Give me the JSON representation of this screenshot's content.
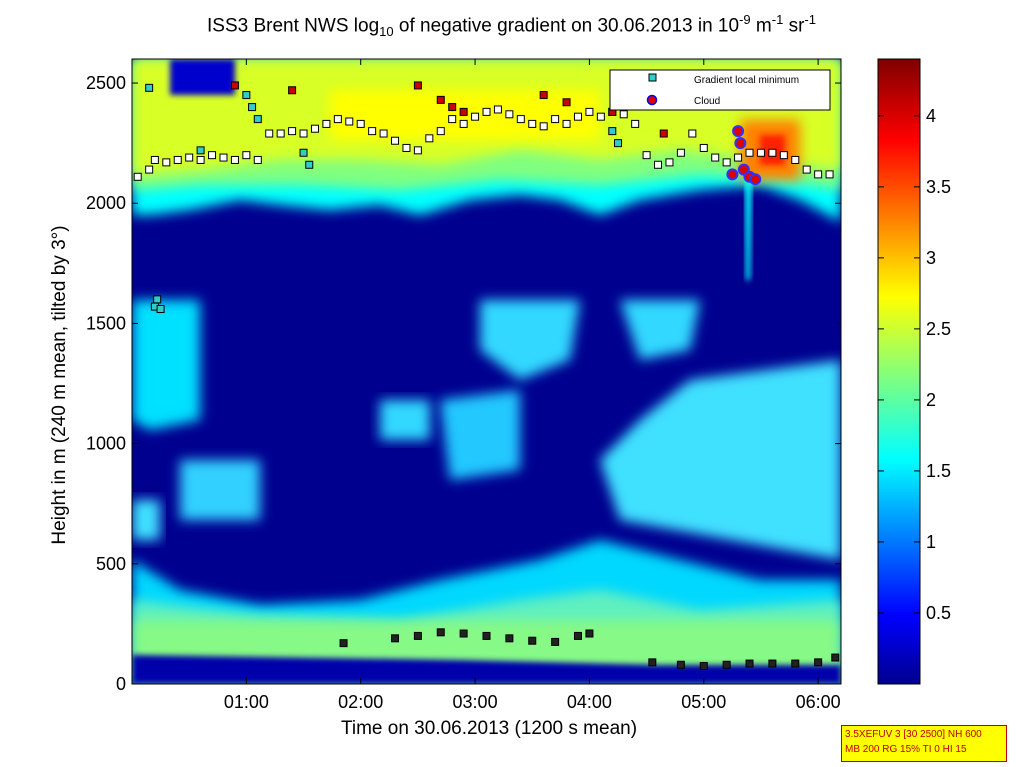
{
  "chart_data": {
    "type": "heatmap",
    "title_main": "ISS3 Brent NWS log",
    "title_sub": "10",
    "title_mid": " of negative gradient on 30.06.2013 in 10",
    "title_sup1": "-9",
    "title_unit1": " m",
    "title_sup2": "-1",
    "title_unit2": " sr",
    "title_sup3": "-1",
    "xlabel": "Time on 30.06.2013 (1200 s mean)",
    "ylabel": "Height in m (240 m mean, tilted by 3°)",
    "xlim": [
      0.0,
      6.2
    ],
    "ylim": [
      0,
      2600
    ],
    "x_ticks": [
      {
        "value": 1,
        "label": "01:00"
      },
      {
        "value": 2,
        "label": "02:00"
      },
      {
        "value": 3,
        "label": "03:00"
      },
      {
        "value": 4,
        "label": "04:00"
      },
      {
        "value": 5,
        "label": "05:00"
      },
      {
        "value": 6,
        "label": "06:00"
      }
    ],
    "y_ticks": [
      0,
      500,
      1000,
      1500,
      2000,
      2500
    ],
    "colorbar": {
      "min": 0,
      "max": 4.4,
      "ticks": [
        0.5,
        1,
        1.5,
        2,
        2.5,
        3,
        3.5,
        4
      ],
      "colormap": "jet"
    },
    "legend": {
      "position": "top-right",
      "entries": [
        {
          "label": "Gradient local minimum",
          "marker": "square",
          "color": "#33cccc"
        },
        {
          "label": "Cloud",
          "marker": "circle",
          "color": "#dd0000"
        }
      ]
    },
    "series": [
      {
        "kind": "boundary-markers",
        "marker": "square",
        "color": "#ffffff",
        "points": [
          [
            0.05,
            2110
          ],
          [
            0.15,
            2140
          ],
          [
            0.2,
            2180
          ],
          [
            0.3,
            2170
          ],
          [
            0.4,
            2180
          ],
          [
            0.5,
            2190
          ],
          [
            0.6,
            2180
          ],
          [
            0.7,
            2200
          ],
          [
            0.8,
            2190
          ],
          [
            0.9,
            2180
          ],
          [
            1.0,
            2200
          ],
          [
            1.1,
            2180
          ],
          [
            1.2,
            2290
          ],
          [
            1.3,
            2290
          ],
          [
            1.4,
            2300
          ],
          [
            1.5,
            2290
          ],
          [
            1.6,
            2310
          ],
          [
            1.7,
            2330
          ],
          [
            1.8,
            2350
          ],
          [
            1.9,
            2340
          ],
          [
            2.0,
            2330
          ],
          [
            2.1,
            2300
          ],
          [
            2.2,
            2290
          ],
          [
            2.3,
            2260
          ],
          [
            2.4,
            2230
          ],
          [
            2.5,
            2220
          ],
          [
            2.6,
            2270
          ],
          [
            2.7,
            2300
          ],
          [
            2.8,
            2350
          ],
          [
            2.9,
            2330
          ],
          [
            3.0,
            2360
          ],
          [
            3.1,
            2380
          ],
          [
            3.2,
            2390
          ],
          [
            3.3,
            2370
          ],
          [
            3.4,
            2350
          ],
          [
            3.5,
            2330
          ],
          [
            3.6,
            2320
          ],
          [
            3.7,
            2350
          ],
          [
            3.8,
            2330
          ],
          [
            3.9,
            2360
          ],
          [
            4.0,
            2380
          ],
          [
            4.1,
            2360
          ],
          [
            4.2,
            2380
          ],
          [
            4.3,
            2370
          ],
          [
            4.4,
            2330
          ],
          [
            4.5,
            2200
          ],
          [
            4.6,
            2160
          ],
          [
            4.7,
            2170
          ],
          [
            4.8,
            2210
          ],
          [
            4.9,
            2290
          ],
          [
            5.0,
            2230
          ],
          [
            5.1,
            2190
          ],
          [
            5.2,
            2170
          ],
          [
            5.3,
            2190
          ],
          [
            5.4,
            2210
          ],
          [
            5.5,
            2210
          ],
          [
            5.6,
            2210
          ],
          [
            5.7,
            2200
          ],
          [
            5.8,
            2180
          ],
          [
            5.9,
            2140
          ],
          [
            6.0,
            2120
          ],
          [
            6.1,
            2120
          ]
        ]
      },
      {
        "kind": "boundary-markers-low",
        "marker": "square",
        "color": "#222222",
        "points": [
          [
            1.85,
            170
          ],
          [
            2.3,
            190
          ],
          [
            2.5,
            200
          ],
          [
            2.7,
            215
          ],
          [
            2.9,
            210
          ],
          [
            3.1,
            200
          ],
          [
            3.3,
            190
          ],
          [
            3.5,
            180
          ],
          [
            3.7,
            175
          ],
          [
            3.9,
            200
          ],
          [
            4.0,
            210
          ],
          [
            4.55,
            90
          ],
          [
            4.8,
            80
          ],
          [
            5.0,
            75
          ],
          [
            5.2,
            80
          ],
          [
            5.4,
            85
          ],
          [
            5.6,
            85
          ],
          [
            5.8,
            85
          ],
          [
            6.0,
            90
          ],
          [
            6.15,
            110
          ]
        ]
      },
      {
        "kind": "gradient-local-minimum",
        "marker": "square",
        "color": "#33cccc",
        "points": [
          [
            0.15,
            2480
          ],
          [
            0.2,
            1570
          ],
          [
            0.22,
            1600
          ],
          [
            0.25,
            1560
          ],
          [
            0.6,
            2220
          ],
          [
            1.0,
            2450
          ],
          [
            1.05,
            2400
          ],
          [
            1.1,
            2350
          ],
          [
            1.5,
            2210
          ],
          [
            1.55,
            2160
          ],
          [
            4.2,
            2300
          ],
          [
            4.25,
            2250
          ]
        ]
      },
      {
        "kind": "cloud",
        "marker": "circle",
        "color": "#dd0000",
        "points": [
          [
            5.25,
            2120
          ],
          [
            5.3,
            2300
          ],
          [
            5.32,
            2250
          ],
          [
            5.35,
            2140
          ],
          [
            5.4,
            2110
          ],
          [
            5.45,
            2100
          ]
        ]
      },
      {
        "kind": "red-squares",
        "marker": "square",
        "color": "#cc0000",
        "points": [
          [
            0.9,
            2490
          ],
          [
            1.4,
            2470
          ],
          [
            2.5,
            2490
          ],
          [
            2.7,
            2430
          ],
          [
            2.8,
            2400
          ],
          [
            2.9,
            2380
          ],
          [
            3.6,
            2450
          ],
          [
            3.8,
            2420
          ],
          [
            4.2,
            2380
          ],
          [
            4.65,
            2290
          ]
        ]
      }
    ]
  },
  "info_box": {
    "line1": "3.5XEFUV 3 [30 2500] NH 600",
    "line2": "MB 200 RG 15% TI 0 HI 15"
  }
}
